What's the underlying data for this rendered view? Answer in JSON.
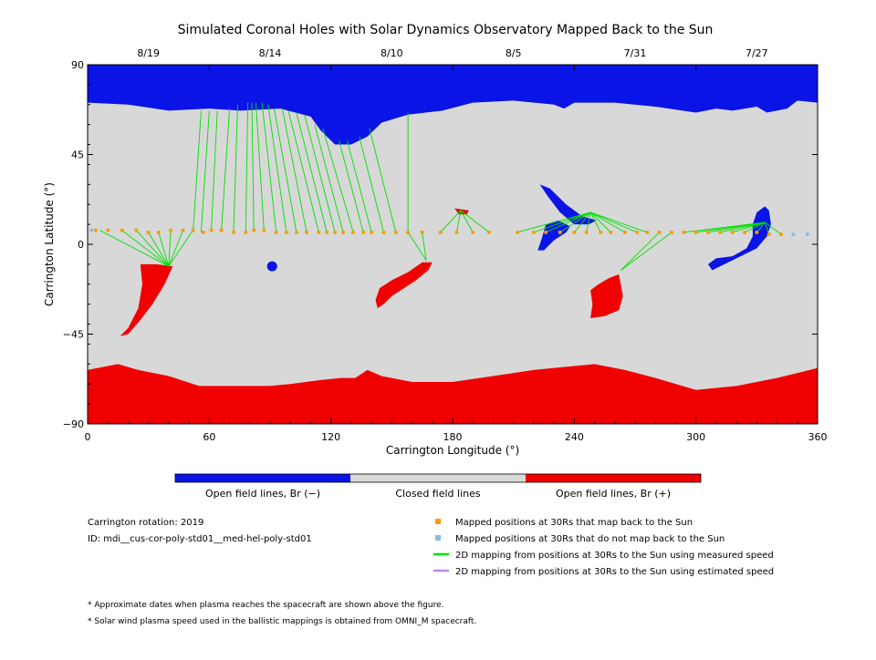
{
  "chart_data": {
    "type": "map",
    "title": "Simulated Coronal Holes with Solar Dynamics Observatory Mapped Back to the Sun",
    "xlabel": "Carrington Longitude (°)",
    "ylabel": "Carrington Latitude (°)",
    "xlim": [
      0,
      360
    ],
    "ylim": [
      -90,
      90
    ],
    "x_ticks": [
      0,
      60,
      120,
      180,
      240,
      300,
      360
    ],
    "y_ticks": [
      -90,
      -45,
      0,
      45,
      90
    ],
    "top_dates": [
      {
        "label": "8/19",
        "lon": 30
      },
      {
        "label": "8/14",
        "lon": 90
      },
      {
        "label": "8/10",
        "lon": 150
      },
      {
        "label": "8/5",
        "lon": 210
      },
      {
        "label": "7/31",
        "lon": 270
      },
      {
        "label": "7/27",
        "lon": 330
      }
    ],
    "colors": {
      "open_negative": "#0a14e6",
      "closed": "#d8d8d8",
      "open_positive": "#f00000",
      "mapped": "#f0a000",
      "unmapped": "#88bbee",
      "measured_line": "#00e000",
      "estimated_line": "#bb88ee"
    },
    "north_boundary": [
      [
        0,
        71
      ],
      [
        20,
        70
      ],
      [
        40,
        67
      ],
      [
        60,
        68
      ],
      [
        75,
        67
      ],
      [
        95,
        68
      ],
      [
        110,
        64
      ],
      [
        115,
        57
      ],
      [
        122,
        50
      ],
      [
        130,
        50
      ],
      [
        138,
        54
      ],
      [
        145,
        61
      ],
      [
        158,
        65
      ],
      [
        175,
        67
      ],
      [
        190,
        71
      ],
      [
        210,
        72
      ],
      [
        230,
        70
      ],
      [
        235,
        68
      ],
      [
        240,
        71
      ],
      [
        260,
        71
      ],
      [
        280,
        69
      ],
      [
        300,
        66
      ],
      [
        310,
        68
      ],
      [
        318,
        67
      ],
      [
        330,
        69
      ],
      [
        335,
        66
      ],
      [
        345,
        68
      ],
      [
        350,
        72
      ],
      [
        360,
        71
      ]
    ],
    "south_boundary": [
      [
        0,
        -63
      ],
      [
        10,
        -61
      ],
      [
        15,
        -60
      ],
      [
        25,
        -63
      ],
      [
        40,
        -66
      ],
      [
        55,
        -71
      ],
      [
        70,
        -71
      ],
      [
        90,
        -71
      ],
      [
        100,
        -70
      ],
      [
        115,
        -68
      ],
      [
        125,
        -67
      ],
      [
        132,
        -67
      ],
      [
        138,
        -63
      ],
      [
        145,
        -66
      ],
      [
        160,
        -69
      ],
      [
        180,
        -69
      ],
      [
        200,
        -66
      ],
      [
        220,
        -63
      ],
      [
        240,
        -61
      ],
      [
        250,
        -60
      ],
      [
        265,
        -63
      ],
      [
        280,
        -67
      ],
      [
        300,
        -73
      ],
      [
        320,
        -71
      ],
      [
        340,
        -67
      ],
      [
        360,
        -62
      ]
    ],
    "coronal_holes": [
      {
        "polarity": "negative",
        "lon": 91,
        "lat": -11,
        "rx": 2.5,
        "ry": 2.5
      },
      {
        "polarity": "negative",
        "points": [
          [
            223,
            30
          ],
          [
            228,
            28
          ],
          [
            236,
            20
          ],
          [
            244,
            14
          ],
          [
            251,
            12
          ],
          [
            247,
            10
          ],
          [
            240,
            10
          ],
          [
            233,
            16
          ],
          [
            227,
            24
          ]
        ]
      },
      {
        "polarity": "negative",
        "points": [
          [
            226,
            10
          ],
          [
            232,
            12
          ],
          [
            238,
            9
          ],
          [
            236,
            6
          ],
          [
            230,
            2
          ],
          [
            225,
            -3
          ],
          [
            222,
            -3
          ],
          [
            224,
            3
          ]
        ]
      },
      {
        "polarity": "negative",
        "points": [
          [
            328,
            10
          ],
          [
            330,
            16
          ],
          [
            334,
            19
          ],
          [
            336,
            17
          ],
          [
            337,
            10
          ],
          [
            335,
            4
          ],
          [
            330,
            -2
          ],
          [
            322,
            -6
          ],
          [
            314,
            -10
          ],
          [
            308,
            -13
          ],
          [
            306,
            -10
          ],
          [
            310,
            -7
          ],
          [
            318,
            -6
          ],
          [
            325,
            -2
          ],
          [
            328,
            4
          ]
        ]
      },
      {
        "polarity": "positive",
        "points": [
          [
            26,
            -10
          ],
          [
            34,
            -10
          ],
          [
            42,
            -11
          ],
          [
            38,
            -20
          ],
          [
            32,
            -30
          ],
          [
            26,
            -38
          ],
          [
            20,
            -45
          ],
          [
            16,
            -46
          ],
          [
            20,
            -42
          ],
          [
            25,
            -32
          ],
          [
            27,
            -20
          ]
        ]
      },
      {
        "polarity": "positive",
        "points": [
          [
            165,
            -9
          ],
          [
            170,
            -9
          ],
          [
            168,
            -13
          ],
          [
            162,
            -18
          ],
          [
            156,
            -22
          ],
          [
            150,
            -26
          ],
          [
            146,
            -30
          ],
          [
            143,
            -32
          ],
          [
            142,
            -28
          ],
          [
            144,
            -22
          ],
          [
            150,
            -18
          ],
          [
            158,
            -14
          ]
        ]
      },
      {
        "polarity": "positive",
        "points": [
          [
            181,
            18
          ],
          [
            188,
            17
          ],
          [
            187,
            15
          ],
          [
            183,
            15
          ]
        ]
      },
      {
        "polarity": "positive",
        "points": [
          [
            262,
            -15
          ],
          [
            264,
            -26
          ],
          [
            262,
            -33
          ],
          [
            255,
            -36
          ],
          [
            248,
            -37
          ],
          [
            249,
            -30
          ],
          [
            248,
            -23
          ],
          [
            252,
            -20
          ],
          [
            257,
            -17
          ]
        ]
      }
    ],
    "mapped_points": [
      [
        4,
        7
      ],
      [
        10,
        7
      ],
      [
        17,
        7
      ],
      [
        24,
        7
      ],
      [
        30,
        6
      ],
      [
        35,
        6
      ],
      [
        41,
        7
      ],
      [
        47,
        7
      ],
      [
        52,
        7
      ],
      [
        57,
        6
      ],
      [
        61,
        7
      ],
      [
        66,
        7
      ],
      [
        72,
        6
      ],
      [
        78,
        6
      ],
      [
        82,
        7
      ],
      [
        87,
        7
      ],
      [
        93,
        6
      ],
      [
        98,
        6
      ],
      [
        103,
        6
      ],
      [
        108,
        6
      ],
      [
        114,
        6
      ],
      [
        118,
        6
      ],
      [
        122,
        6
      ],
      [
        126,
        6
      ],
      [
        131,
        6
      ],
      [
        136,
        6
      ],
      [
        140,
        6
      ],
      [
        146,
        6
      ],
      [
        152,
        6
      ],
      [
        158,
        6
      ],
      [
        165,
        6
      ],
      [
        174,
        6
      ],
      [
        182,
        6
      ],
      [
        190,
        6
      ],
      [
        198,
        6
      ],
      [
        212,
        6
      ],
      [
        220,
        6
      ],
      [
        226,
        6
      ],
      [
        233,
        6
      ],
      [
        240,
        6
      ],
      [
        246,
        6
      ],
      [
        253,
        6
      ],
      [
        258,
        6
      ],
      [
        265,
        6
      ],
      [
        271,
        6
      ],
      [
        276,
        6
      ],
      [
        282,
        6
      ],
      [
        288,
        6
      ],
      [
        294,
        6
      ],
      [
        300,
        6
      ],
      [
        306,
        6
      ],
      [
        312,
        6
      ],
      [
        318,
        6
      ],
      [
        324,
        6
      ],
      [
        330,
        6
      ],
      [
        336,
        5
      ],
      [
        342,
        5
      ]
    ],
    "unmapped_points": [
      [
        2,
        7
      ],
      [
        348,
        5
      ],
      [
        355,
        5
      ]
    ],
    "green_lines": [
      {
        "from": [
          40,
          -11
        ],
        "to": [
          [
            6,
            7
          ],
          [
            17,
            7
          ],
          [
            24,
            7
          ],
          [
            30,
            6
          ],
          [
            35,
            6
          ],
          [
            41,
            7
          ],
          [
            47,
            7
          ],
          [
            52,
            7
          ]
        ]
      },
      {
        "from": [
          167,
          -8
        ],
        "to": [
          [
            158,
            6
          ],
          [
            165,
            6
          ]
        ]
      },
      {
        "from": [
          184,
          17
        ],
        "to": [
          [
            174,
            6
          ],
          [
            182,
            6
          ],
          [
            190,
            6
          ],
          [
            198,
            6
          ]
        ]
      },
      {
        "from": [
          248,
          16
        ],
        "to": [
          [
            212,
            6
          ],
          [
            220,
            6
          ],
          [
            226,
            6
          ],
          [
            233,
            6
          ],
          [
            240,
            6
          ],
          [
            246,
            6
          ],
          [
            253,
            6
          ],
          [
            258,
            6
          ],
          [
            265,
            6
          ],
          [
            271,
            6
          ],
          [
            276,
            6
          ]
        ]
      },
      {
        "from": [
          263,
          -13
        ],
        "to": [
          [
            282,
            6
          ],
          [
            288,
            6
          ]
        ]
      },
      {
        "from": [
          334,
          11
        ],
        "to": [
          [
            294,
            6
          ],
          [
            300,
            6
          ],
          [
            306,
            6
          ],
          [
            312,
            6
          ],
          [
            318,
            6
          ],
          [
            324,
            6
          ],
          [
            330,
            6
          ],
          [
            336,
            5
          ],
          [
            342,
            5
          ]
        ]
      }
    ],
    "polar_lines": [
      [
        52,
        6,
        56,
        67
      ],
      [
        56,
        6,
        60,
        67
      ],
      [
        61,
        7,
        64,
        67
      ],
      [
        66,
        7,
        70,
        68
      ],
      [
        72,
        6,
        74,
        70
      ],
      [
        78,
        6,
        79,
        71
      ],
      [
        82,
        7,
        81,
        71
      ],
      [
        87,
        7,
        83,
        71
      ],
      [
        93,
        6,
        86,
        71
      ],
      [
        98,
        6,
        89,
        70
      ],
      [
        103,
        6,
        92,
        68
      ],
      [
        108,
        6,
        96,
        68
      ],
      [
        114,
        6,
        99,
        67
      ],
      [
        118,
        6,
        103,
        66
      ],
      [
        122,
        6,
        107,
        65
      ],
      [
        126,
        6,
        112,
        60
      ],
      [
        131,
        6,
        116,
        58
      ],
      [
        136,
        6,
        124,
        52
      ],
      [
        140,
        6,
        128,
        52
      ],
      [
        146,
        6,
        134,
        54
      ],
      [
        152,
        6,
        139,
        58
      ],
      [
        158,
        6,
        158,
        66
      ]
    ],
    "colorbar": [
      "Open field lines, Br (−)",
      "Closed field lines",
      "Open field lines, Br (+)"
    ]
  },
  "footer": {
    "rotation": "Carrington rotation: 2019",
    "id": "ID: mdi__cus-cor-poly-std01__med-hel-poly-std01",
    "legend": [
      "Mapped positions at 30Rs that map back to the Sun",
      "Mapped positions at 30Rs that do not map back to the Sun",
      "2D mapping from positions at 30Rs to the Sun using measured speed",
      "2D mapping from positions at 30Rs to the Sun using estimated speed"
    ],
    "notes": [
      "* Approximate dates when plasma reaches the spacecraft are shown above the figure.",
      "* Solar wind plasma speed used in the ballistic mappings is obtained from OMNI_M spacecraft."
    ]
  }
}
